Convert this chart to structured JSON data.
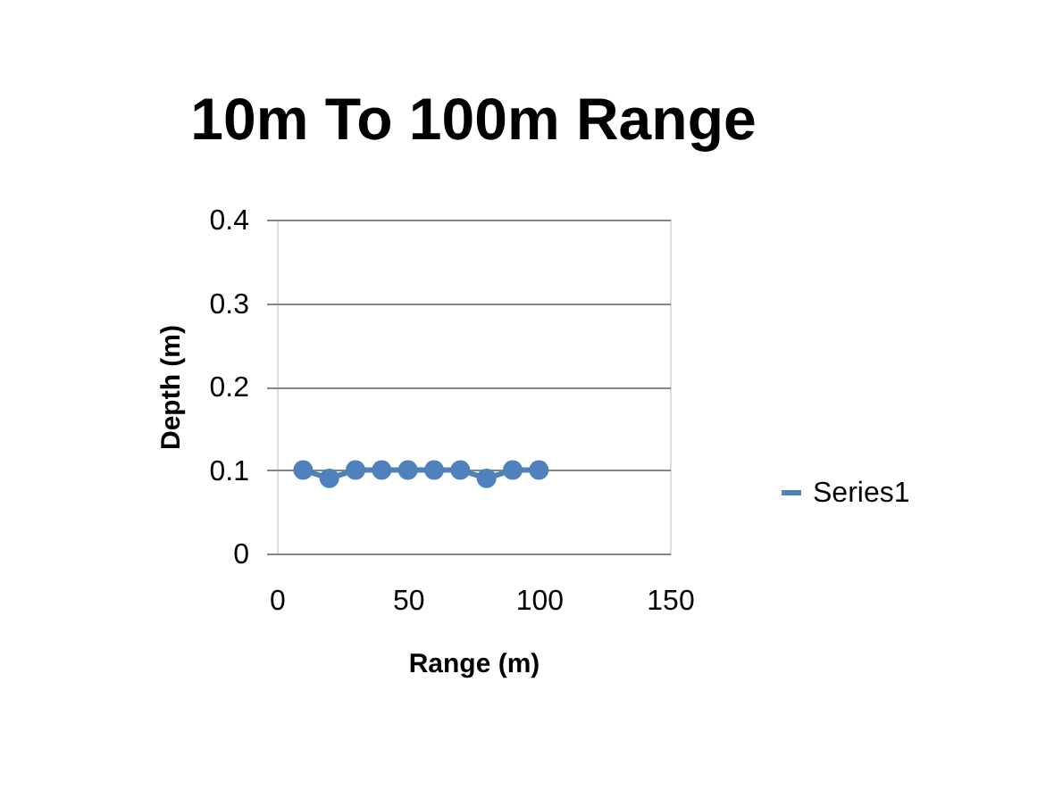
{
  "chart_data": {
    "type": "line",
    "title": "10m To 100m Range",
    "xlabel": "Range (m)",
    "ylabel": "Depth (m)",
    "x": [
      10,
      20,
      30,
      40,
      50,
      60,
      70,
      80,
      90,
      100
    ],
    "series": [
      {
        "name": "Series1",
        "color": "#4f81bd",
        "values": [
          0.1,
          0.09,
          0.1,
          0.1,
          0.1,
          0.1,
          0.1,
          0.09,
          0.1,
          0.1
        ]
      }
    ],
    "xlim": [
      0,
      150
    ],
    "xticks": [
      0,
      50,
      100,
      150
    ],
    "ylim": [
      0,
      0.4
    ],
    "yticks": [
      0,
      0.1,
      0.2,
      0.3,
      0.4
    ],
    "grid": "y",
    "legend": "right",
    "marker": "circle",
    "line_style": "solid"
  }
}
